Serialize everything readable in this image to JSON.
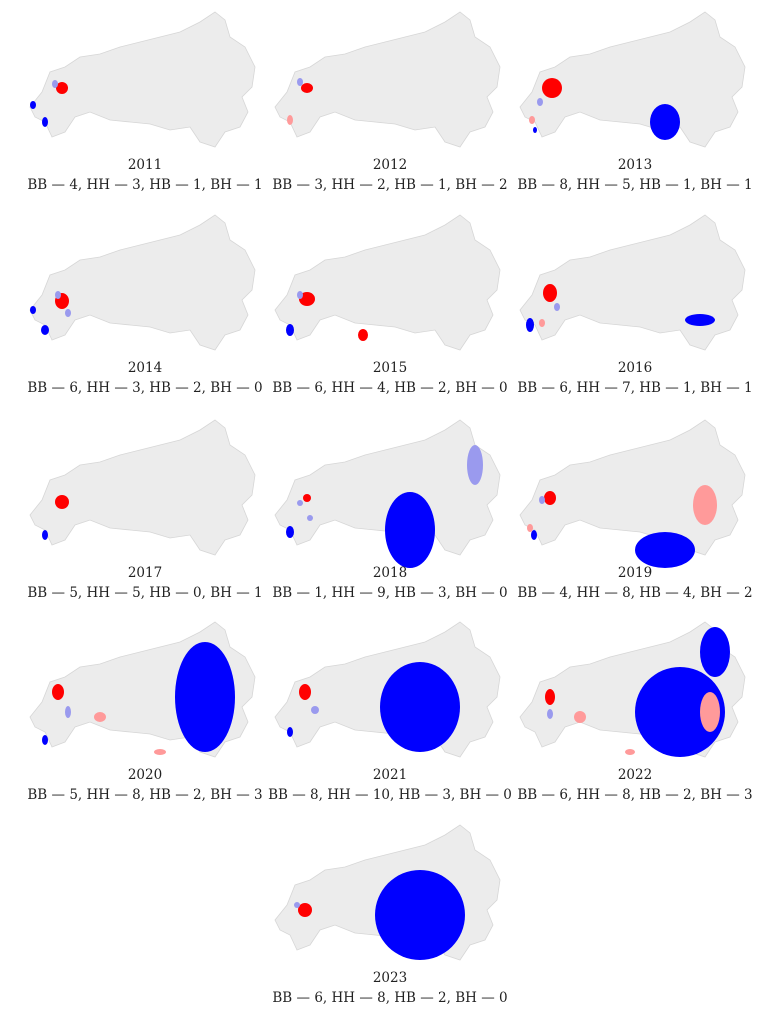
{
  "panels": [
    {
      "year": "2011",
      "caption": "BB — 4, HH — 3, HB — 1, BH — 1"
    },
    {
      "year": "2012",
      "caption": "BB — 3, HH — 2, HB — 1, BH — 2"
    },
    {
      "year": "2013",
      "caption": "BB — 8, HH — 5, HB — 1, BH — 1"
    },
    {
      "year": "2014",
      "caption": "BB — 6, HH — 3, HB — 2, BH — 0"
    },
    {
      "year": "2015",
      "caption": "BB — 6, HH — 4, HB — 2, BH — 0"
    },
    {
      "year": "2016",
      "caption": "BB — 6, HH — 7, HB — 1, BH — 1"
    },
    {
      "year": "2017",
      "caption": "BB — 5, HH — 5, HB — 0, BH — 1"
    },
    {
      "year": "2018",
      "caption": "BB — 1, HH — 9, HB — 3, BH — 0"
    },
    {
      "year": "2019",
      "caption": "BB — 4, HH — 8, HB — 4, BH — 2"
    },
    {
      "year": "2020",
      "caption": "BB — 5, HH — 8, HB — 2, BH — 3"
    },
    {
      "year": "2021",
      "caption": "BB — 8, HH — 10, HB — 3, BH — 0"
    },
    {
      "year": "2022",
      "caption": "BB — 6, HH — 8, HB — 2, BH — 3"
    },
    {
      "year": "2023",
      "caption": "BB — 6, HH — 8, HB — 2, BH — 0"
    }
  ]
}
